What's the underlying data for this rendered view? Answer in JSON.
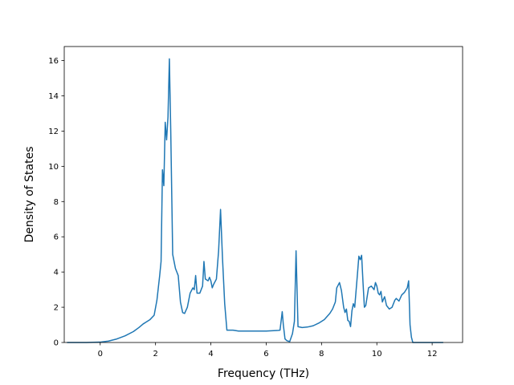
{
  "chart_data": {
    "type": "line",
    "title": "",
    "xlabel": "Frequency (THz)",
    "ylabel": "Density of States",
    "xlim": [
      -1.3,
      13.1
    ],
    "ylim": [
      0,
      16.8
    ],
    "xticks": [
      0,
      2,
      4,
      6,
      8,
      10,
      12
    ],
    "yticks": [
      0,
      2,
      4,
      6,
      8,
      10,
      12,
      14,
      16
    ],
    "grid": false,
    "legend": "none",
    "series": [
      {
        "color": "#1f77b4",
        "x": [
          -1.2,
          -0.5,
          0.0,
          0.3,
          0.6,
          0.9,
          1.2,
          1.4,
          1.55,
          1.65,
          1.8,
          1.95,
          2.05,
          2.15,
          2.2,
          2.25,
          2.3,
          2.35,
          2.4,
          2.45,
          2.5,
          2.55,
          2.62,
          2.72,
          2.82,
          2.9,
          2.98,
          3.05,
          3.15,
          3.25,
          3.35,
          3.4,
          3.45,
          3.5,
          3.6,
          3.7,
          3.75,
          3.8,
          3.9,
          3.95,
          4.0,
          4.05,
          4.1,
          4.2,
          4.28,
          4.35,
          4.42,
          4.5,
          4.58,
          4.65,
          4.8,
          5.0,
          5.5,
          6.0,
          6.4,
          6.5,
          6.58,
          6.62,
          6.68,
          6.75,
          6.85,
          6.95,
          7.02,
          7.08,
          7.15,
          7.3,
          7.5,
          7.7,
          7.9,
          8.1,
          8.3,
          8.4,
          8.5,
          8.55,
          8.65,
          8.72,
          8.8,
          8.85,
          8.9,
          8.95,
          9.0,
          9.05,
          9.1,
          9.15,
          9.2,
          9.3,
          9.35,
          9.4,
          9.45,
          9.5,
          9.55,
          9.6,
          9.65,
          9.7,
          9.8,
          9.9,
          9.95,
          10.0,
          10.05,
          10.1,
          10.15,
          10.2,
          10.28,
          10.35,
          10.45,
          10.55,
          10.65,
          10.7,
          10.8,
          10.9,
          11.0,
          11.1,
          11.15,
          11.2,
          11.25,
          11.3,
          11.5,
          12.0,
          12.4
        ],
        "y": [
          0.0,
          0.0,
          0.02,
          0.08,
          0.2,
          0.38,
          0.62,
          0.85,
          1.05,
          1.15,
          1.3,
          1.55,
          2.4,
          3.8,
          4.6,
          9.8,
          8.9,
          12.5,
          11.5,
          12.8,
          16.1,
          12.0,
          5.0,
          4.2,
          3.8,
          2.3,
          1.7,
          1.65,
          2.0,
          2.8,
          3.1,
          3.0,
          3.8,
          2.8,
          2.8,
          3.2,
          4.6,
          3.6,
          3.5,
          3.7,
          3.5,
          3.1,
          3.3,
          3.6,
          5.2,
          7.55,
          4.8,
          2.2,
          0.7,
          0.7,
          0.7,
          0.65,
          0.65,
          0.65,
          0.68,
          0.7,
          1.75,
          1.0,
          0.2,
          0.1,
          0.05,
          0.5,
          1.2,
          5.2,
          0.9,
          0.85,
          0.88,
          0.95,
          1.1,
          1.3,
          1.65,
          1.9,
          2.3,
          3.1,
          3.4,
          2.95,
          2.0,
          1.7,
          1.9,
          1.25,
          1.2,
          0.9,
          1.8,
          2.2,
          2.0,
          3.9,
          4.9,
          4.7,
          4.95,
          3.4,
          2.0,
          2.1,
          2.6,
          3.1,
          3.2,
          3.0,
          3.4,
          3.2,
          2.8,
          2.7,
          2.9,
          2.3,
          2.6,
          2.1,
          1.9,
          2.0,
          2.4,
          2.5,
          2.35,
          2.7,
          2.85,
          3.1,
          3.5,
          1.0,
          0.3,
          0.0,
          0.0,
          0.0,
          0.0
        ]
      }
    ]
  }
}
